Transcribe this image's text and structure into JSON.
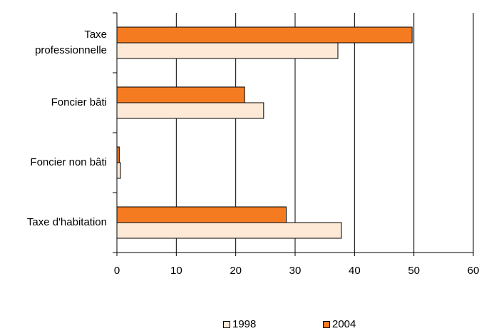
{
  "chart_data": {
    "type": "bar",
    "orientation": "horizontal",
    "categories": [
      "Taxe professionnelle",
      "Foncier bâti",
      "Foncier non bâti",
      "Taxe d'habitation"
    ],
    "category_display": [
      "Taxe\nprofessionnelle",
      "Foncier bâti",
      "Foncier non bâti",
      "Taxe d'habitation"
    ],
    "series": [
      {
        "name": "2004",
        "values": [
          49.7,
          21.5,
          0.4,
          28.5
        ],
        "color": "#f47b20"
      },
      {
        "name": "1998",
        "values": [
          37.2,
          24.7,
          0.6,
          37.8
        ],
        "color": "#fde9d6"
      }
    ],
    "xlim": [
      0,
      60
    ],
    "xticks": [
      "0",
      "10",
      "20",
      "30",
      "40",
      "50",
      "60"
    ],
    "grid": "vertical",
    "legend_position": "bottom",
    "legend": [
      {
        "label": "1998",
        "color": "#fde9d6"
      },
      {
        "label": "2004",
        "color": "#f47b20"
      }
    ]
  }
}
